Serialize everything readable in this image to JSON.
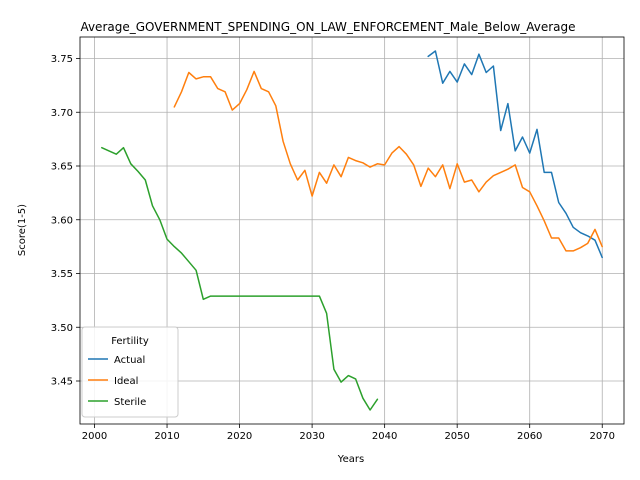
{
  "chart_data": {
    "type": "line",
    "title": "Average_GOVERNMENT_SPENDING_ON_LAW_ENFORCEMENT_Male_Below_Average",
    "xlabel": "Years",
    "ylabel": "Score(1-5)",
    "xlim": [
      1998,
      2073
    ],
    "ylim": [
      3.41,
      3.77
    ],
    "xticks": [
      2000,
      2010,
      2020,
      2030,
      2040,
      2050,
      2060,
      2070
    ],
    "yticks": [
      3.45,
      3.5,
      3.55,
      3.6,
      3.65,
      3.7,
      3.75
    ],
    "ytick_labels": [
      "3.45",
      "3.50",
      "3.55",
      "3.60",
      "3.65",
      "3.70",
      "3.75"
    ],
    "grid": true,
    "legend": {
      "title": "Fertility",
      "placement": "lower-left"
    },
    "series": [
      {
        "name": "Actual",
        "color": "#1f77b4",
        "x": [
          2046,
          2047,
          2048,
          2049,
          2050,
          2051,
          2052,
          2053,
          2054,
          2055,
          2056,
          2057,
          2058,
          2059,
          2060,
          2061,
          2062,
          2063,
          2064,
          2065,
          2066,
          2067,
          2068,
          2069,
          2070
        ],
        "y": [
          3.752,
          3.757,
          3.727,
          3.738,
          3.728,
          3.745,
          3.735,
          3.754,
          3.737,
          3.743,
          3.683,
          3.708,
          3.664,
          3.677,
          3.662,
          3.684,
          3.644,
          3.644,
          3.616,
          3.606,
          3.593,
          3.588,
          3.585,
          3.581,
          3.565
        ]
      },
      {
        "name": "Ideal",
        "color": "#ff7f0e",
        "x": [
          2011,
          2012,
          2013,
          2014,
          2015,
          2016,
          2017,
          2018,
          2019,
          2020,
          2021,
          2022,
          2023,
          2024,
          2025,
          2026,
          2027,
          2028,
          2029,
          2030,
          2031,
          2032,
          2033,
          2034,
          2035,
          2036,
          2037,
          2038,
          2039,
          2040,
          2041,
          2042,
          2043,
          2044,
          2045,
          2046,
          2047,
          2048,
          2049,
          2050,
          2051,
          2052,
          2053,
          2054,
          2055,
          2056,
          2057,
          2058,
          2059,
          2060,
          2061,
          2062,
          2063,
          2064,
          2065,
          2066,
          2067,
          2068,
          2069,
          2070
        ],
        "y": [
          3.705,
          3.719,
          3.737,
          3.731,
          3.733,
          3.733,
          3.722,
          3.719,
          3.702,
          3.708,
          3.721,
          3.738,
          3.722,
          3.719,
          3.706,
          3.673,
          3.652,
          3.637,
          3.646,
          3.622,
          3.644,
          3.634,
          3.651,
          3.64,
          3.658,
          3.655,
          3.653,
          3.649,
          3.652,
          3.651,
          3.662,
          3.668,
          3.661,
          3.651,
          3.631,
          3.648,
          3.64,
          3.651,
          3.629,
          3.652,
          3.635,
          3.637,
          3.626,
          3.635,
          3.641,
          3.644,
          3.647,
          3.651,
          3.63,
          3.626,
          3.613,
          3.599,
          3.583,
          3.583,
          3.571,
          3.571,
          3.574,
          3.578,
          3.591,
          3.575
        ]
      },
      {
        "name": "Sterile",
        "color": "#2ca02c",
        "x": [
          2001,
          2002,
          2003,
          2004,
          2005,
          2006,
          2007,
          2008,
          2009,
          2010,
          2011,
          2012,
          2013,
          2014,
          2015,
          2016,
          2017,
          2018,
          2019,
          2020,
          2021,
          2022,
          2023,
          2024,
          2025,
          2026,
          2027,
          2028,
          2029,
          2030,
          2031,
          2032,
          2033,
          2034,
          2035,
          2036,
          2037,
          2038,
          2039
        ],
        "y": [
          3.667,
          3.664,
          3.661,
          3.667,
          3.652,
          3.645,
          3.637,
          3.613,
          3.6,
          3.582,
          3.575,
          3.569,
          3.561,
          3.553,
          3.526,
          3.529,
          3.529,
          3.529,
          3.529,
          3.529,
          3.529,
          3.529,
          3.529,
          3.529,
          3.529,
          3.529,
          3.529,
          3.529,
          3.529,
          3.529,
          3.529,
          3.513,
          3.461,
          3.449,
          3.455,
          3.452,
          3.434,
          3.423,
          3.433
        ]
      }
    ]
  }
}
